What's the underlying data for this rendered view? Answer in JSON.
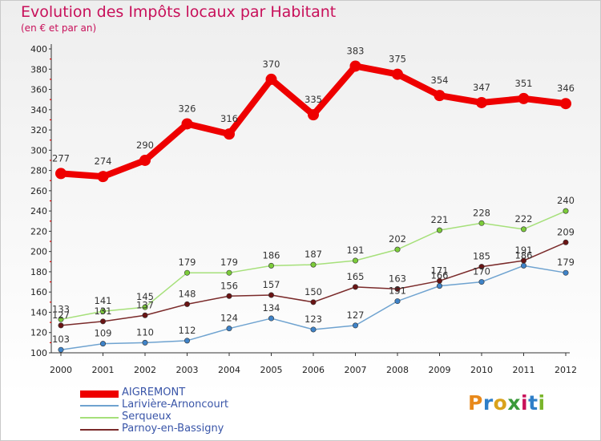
{
  "header": {
    "title": "Evolution des Impôts locaux par Habitant",
    "subtitle": "(en € et par an)"
  },
  "logo": {
    "text": "Proxiti"
  },
  "chart_data": {
    "type": "line",
    "x": [
      "2000",
      "2001",
      "2002",
      "2003",
      "2004",
      "2005",
      "2006",
      "2007",
      "2008",
      "2009",
      "2010",
      "2011",
      "2012"
    ],
    "ylim": [
      100,
      400
    ],
    "yticks": [
      100,
      120,
      140,
      160,
      180,
      200,
      220,
      240,
      260,
      280,
      300,
      320,
      340,
      360,
      380,
      400
    ],
    "grid": false,
    "legend_placement": "bottom-left",
    "series": [
      {
        "name": "AIGREMONT",
        "color": "#ee0000",
        "point_color": "#ee0000",
        "width": 8,
        "point_r": 7,
        "values": [
          277,
          274,
          290,
          326,
          316,
          370,
          335,
          383,
          375,
          354,
          347,
          351,
          346
        ]
      },
      {
        "name": "Larivière-Arnoncourt",
        "color": "#6fa3d0",
        "point_color": "#3f83c8",
        "width": 1.5,
        "point_r": 3.2,
        "values": [
          103,
          109,
          110,
          112,
          124,
          134,
          123,
          127,
          151,
          166,
          170,
          186,
          179
        ]
      },
      {
        "name": "Serqueux",
        "color": "#a6e07a",
        "point_color": "#7ccc3a",
        "width": 1.5,
        "point_r": 3.2,
        "values": [
          133,
          141,
          145,
          179,
          179,
          186,
          187,
          191,
          202,
          221,
          228,
          222,
          240
        ]
      },
      {
        "name": "Parnoy-en-Bassigny",
        "color": "#7a2a2a",
        "point_color": "#6a1414",
        "width": 1.5,
        "point_r": 3.2,
        "values": [
          127,
          131,
          137,
          148,
          156,
          157,
          150,
          165,
          163,
          171,
          185,
          191,
          209
        ]
      }
    ]
  }
}
